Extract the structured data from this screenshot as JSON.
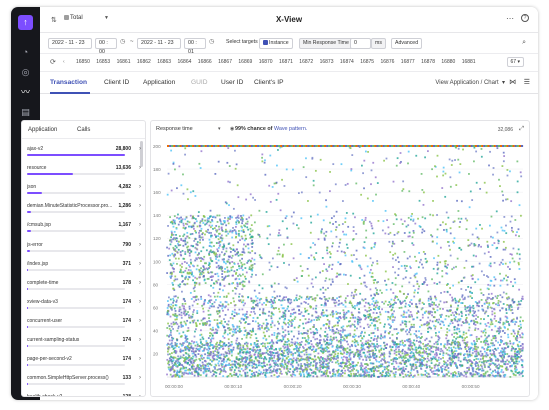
{
  "window": {
    "title": "X-View"
  },
  "header": {
    "scope_label": "Total"
  },
  "search_bar": {
    "from_date": "2022 - 11 - 23",
    "from_time": "00 : 00",
    "to_date": "2022 - 11 - 23",
    "to_time": "00 : 01",
    "select_targets_label": "Select targets",
    "instance_label": "Instance",
    "min_response_label": "Min Response Time",
    "min_response_value": "0",
    "min_response_unit": "ms",
    "advanced_label": "Advanced"
  },
  "instances": {
    "ids": [
      "16850",
      "16853",
      "16861",
      "16862",
      "16863",
      "16864",
      "16866",
      "16867",
      "16869",
      "16870",
      "16871",
      "16872",
      "16873",
      "16874",
      "16875",
      "16876",
      "16877",
      "16878",
      "16880",
      "16881"
    ],
    "count": "67"
  },
  "tabs": [
    {
      "label": "Transaction",
      "state": "active"
    },
    {
      "label": "Client ID",
      "state": "normal"
    },
    {
      "label": "Application",
      "state": "normal"
    },
    {
      "label": "GUID",
      "state": "muted"
    },
    {
      "label": "User ID",
      "state": "normal"
    },
    {
      "label": "Client's IP",
      "state": "normal"
    }
  ],
  "view_select": "View Application / Chart",
  "list": {
    "col_name": "Application",
    "col_value": "Calls",
    "max": 28800,
    "items": [
      {
        "name": "ajax-v2",
        "value": "28,800",
        "amount": 28800
      },
      {
        "name": "resource",
        "value": "13,636",
        "amount": 13636
      },
      {
        "name": "json",
        "value": "4,282",
        "amount": 4282
      },
      {
        "name": "demian.MinuteStatisticProcessor.pro...",
        "value": "1,286",
        "amount": 1286
      },
      {
        "name": "/cmsub.jsp",
        "value": "1,167",
        "amount": 1167
      },
      {
        "name": "js-error",
        "value": "790",
        "amount": 790
      },
      {
        "name": "/index.jsp",
        "value": "371",
        "amount": 371
      },
      {
        "name": "complete-time",
        "value": "178",
        "amount": 178
      },
      {
        "name": "xview-data-v3",
        "value": "174",
        "amount": 174
      },
      {
        "name": "concurrent-user",
        "value": "174",
        "amount": 174
      },
      {
        "name": "current-sampling-status",
        "value": "174",
        "amount": 174
      },
      {
        "name": "page-per-second-v2",
        "value": "174",
        "amount": 174
      },
      {
        "name": "common.SimpleHttpServer.process()",
        "value": "133",
        "amount": 133
      },
      {
        "name": "health-check-v2",
        "value": "128",
        "amount": 128
      }
    ]
  },
  "chart_header": {
    "metric_label": "Response time",
    "insight_prefix": "99% chance of ",
    "insight_link": "Wave pattern.",
    "total": "32,086"
  },
  "chart_data": {
    "type": "scatter",
    "title": "",
    "xlabel": "",
    "ylabel": "",
    "x_ticks": [
      "00:00:00",
      "00:00:10",
      "00:00:20",
      "00:00:30",
      "00:00:40",
      "00:00:50"
    ],
    "y_ticks": [
      20,
      40,
      60,
      80,
      100,
      120,
      140,
      160,
      180,
      200
    ],
    "xlim": [
      0,
      60
    ],
    "ylim": [
      0,
      200
    ],
    "point_colors": [
      "#5c6bc0",
      "#7986cb",
      "#66bb6a",
      "#8bc34a",
      "#4fc3f7",
      "#9575cd",
      "#26a69a"
    ],
    "density_bands": [
      {
        "y_range": [
          0,
          30
        ],
        "density": "very high"
      },
      {
        "y_range": [
          30,
          70
        ],
        "density": "high"
      },
      {
        "y_range": [
          70,
          140
        ],
        "density": "medium"
      },
      {
        "y_range": [
          140,
          200
        ],
        "density": "low"
      }
    ],
    "top_band_value": 200
  }
}
